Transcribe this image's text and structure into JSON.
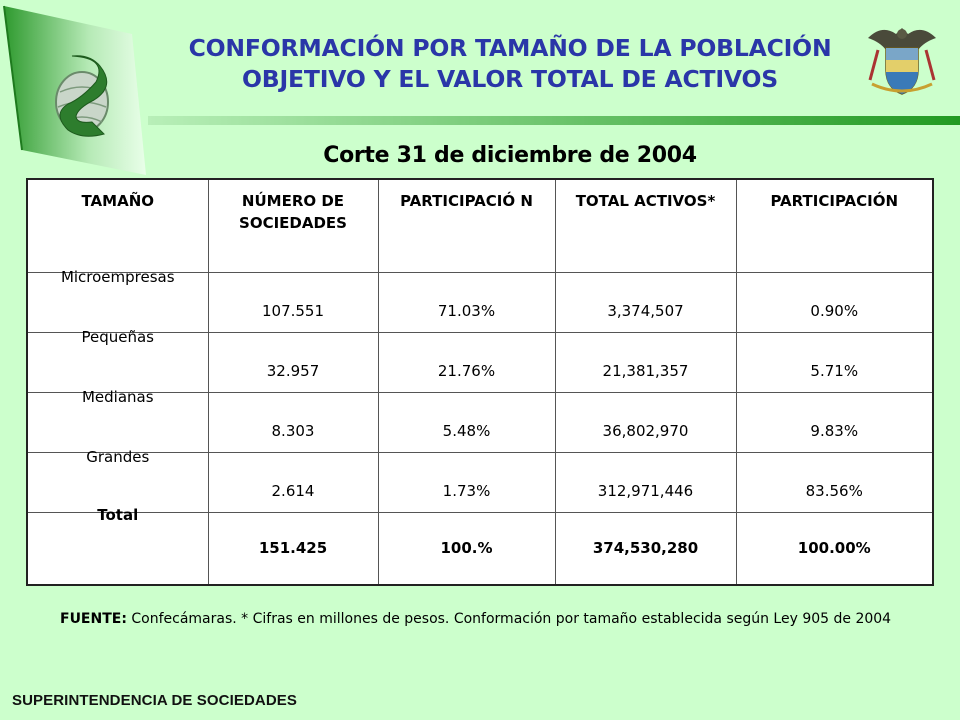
{
  "title": {
    "line1": "CONFORMACIÓN POR TAMAÑO DE LA POBLACIÓN",
    "line2": "OBJETIVO Y EL VALOR TOTAL DE ACTIVOS"
  },
  "subtitle": "Corte 31 de diciembre de 2004",
  "table": {
    "headers": [
      "TAMAÑO",
      "NÚMERO DE SOCIEDADES",
      "PARTICIPACIÓ N",
      "TOTAL ACTIVOS*",
      "PARTICIPACIÓN"
    ],
    "rows": [
      {
        "size": "Microempresas",
        "count": "107.551",
        "share": "71.03%",
        "assets": "3,374,507",
        "asset_share": "0.90%"
      },
      {
        "size": "Pequeñas",
        "count": "32.957",
        "share": "21.76%",
        "assets": "21,381,357",
        "asset_share": "5.71%"
      },
      {
        "size": "Medianas",
        "count": "8.303",
        "share": "5.48%",
        "assets": "36,802,970",
        "asset_share": "9.83%"
      },
      {
        "size": "Grandes",
        "count": "2.614",
        "share": "1.73%",
        "assets": "312,971,446",
        "asset_share": "83.56%"
      }
    ],
    "total": {
      "size": "Total",
      "count": "151.425",
      "share": "100.%",
      "assets": "374,530,280",
      "asset_share": "100.00%"
    }
  },
  "source": {
    "label": "FUENTE:",
    "text": " Confecámaras. * Cifras en millones de pesos. Conformación por tamaño establecida según Ley 905 de 2004"
  },
  "footer": "SUPERINTENDENCIA DE SOCIEDADES",
  "colors": {
    "background": "#ccffcc",
    "title": "#2a36a8",
    "accent_green": "#229a22"
  },
  "icons": {
    "logo": "supersociedades-logo",
    "crest": "colombia-coat-of-arms"
  }
}
